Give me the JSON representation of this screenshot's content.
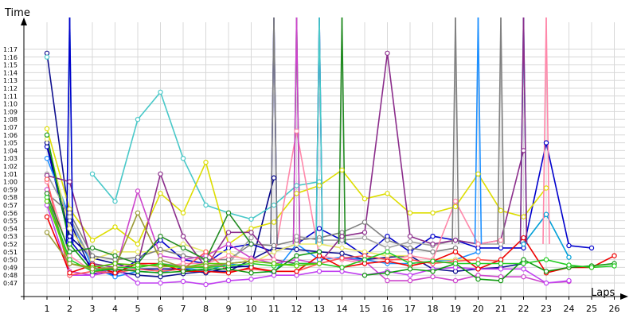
{
  "chart_data": {
    "type": "line",
    "title": "",
    "xlabel": "Laps",
    "ylabel": "Time",
    "x": [
      1,
      2,
      3,
      4,
      5,
      6,
      7,
      8,
      9,
      10,
      11,
      12,
      13,
      14,
      15,
      16,
      17,
      18,
      19,
      20,
      21,
      22,
      23,
      24,
      25,
      26
    ],
    "ylim": [
      46.5,
      77.6
    ],
    "y_ticks": [
      "0:47",
      "0:48",
      "0:49",
      "0:50",
      "0:51",
      "0:52",
      "0:53",
      "0:54",
      "0:55",
      "0:56",
      "0:57",
      "0:58",
      "0:59",
      "1:00",
      "1:01",
      "1:02",
      "1:03",
      "1:04",
      "1:05",
      "1:06",
      "1:07",
      "1:08",
      "1:09",
      "1:10",
      "1:11",
      "1:12",
      "1:13",
      "1:14",
      "1:15",
      "1:16",
      "1:17"
    ],
    "y_tick_values": [
      47,
      48,
      49,
      50,
      51,
      52,
      53,
      54,
      55,
      56,
      57,
      58,
      59,
      60,
      61,
      62,
      63,
      64,
      65,
      66,
      67,
      68,
      69,
      70,
      71,
      72,
      73,
      74,
      75,
      76,
      77
    ],
    "grid": true,
    "series": [
      {
        "color": "#0000cc",
        "values": [
          64.5,
          52.5,
          49.0,
          48.0,
          50.0,
          52.5,
          50.0,
          49.5,
          51.5,
          52.0,
          51.0,
          52.0,
          54.0,
          52.5,
          50.5,
          53.0,
          51.0,
          53.0,
          52.5,
          51.5,
          51.5,
          51.5,
          65.0,
          51.8,
          51.5,
          null
        ]
      },
      {
        "color": "#1e90ff",
        "values": [
          63.0,
          55.5,
          49.0,
          47.8,
          48.5,
          48.3,
          49.0,
          48.5,
          49.5,
          49.0,
          48.3,
          52.0,
          50.0,
          50.3,
          50.0,
          49.5,
          49.5,
          49.8,
          50.0,
          51.0,
          null,
          null,
          null,
          null,
          null,
          null
        ]
      },
      {
        "color": "#00a0d8",
        "values": [
          null,
          null,
          null,
          null,
          null,
          null,
          null,
          null,
          null,
          null,
          null,
          null,
          null,
          null,
          null,
          null,
          null,
          null,
          null,
          null,
          null,
          52.0,
          55.8,
          50.3,
          null,
          null
        ]
      },
      {
        "color": "#0f0f8f",
        "values": [
          76.5,
          55.0,
          48.2,
          48.5,
          48.0,
          47.8,
          48.2,
          48.5,
          48.5,
          50.0,
          51.5,
          51.3,
          51.0,
          50.8,
          50.0,
          50.3,
          50.5,
          48.8,
          48.5,
          48.8,
          49.0,
          49.5,
          null,
          null,
          null,
          null
        ]
      },
      {
        "color": "#000088",
        "values": [
          65.0,
          53.0,
          50.2,
          49.5,
          48.8,
          48.8,
          48.8,
          48.3,
          49.0,
          49.2,
          60.5,
          null,
          null,
          null,
          null,
          null,
          null,
          null,
          null,
          null,
          null,
          null,
          null,
          null,
          null,
          null
        ]
      },
      {
        "color": "#48c8c8",
        "values": [
          76.0,
          null,
          61.0,
          57.5,
          68.0,
          71.5,
          63.0,
          57.0,
          56.0,
          55.2,
          57.0,
          59.5,
          60.0,
          null,
          null,
          null,
          null,
          null,
          null,
          null,
          null,
          null,
          null,
          null,
          null,
          null
        ]
      },
      {
        "color": "#dddd00",
        "values": [
          66.8,
          56.5,
          52.5,
          54.2,
          52.0,
          58.5,
          56.0,
          62.5,
          52.0,
          54.0,
          54.8,
          58.5,
          59.5,
          61.5,
          57.8,
          58.5,
          56.0,
          56.0,
          56.8,
          61.0,
          56.3,
          55.5,
          59.2,
          null,
          null,
          null
        ]
      },
      {
        "color": "#e8e868",
        "values": [
          65.5,
          54.0,
          50.0,
          51.0,
          51.0,
          51.0,
          52.0,
          51.0,
          51.0,
          49.5,
          51.0,
          52.0,
          52.0,
          51.5,
          51.0,
          50.5,
          50.5,
          50.0,
          50.0,
          50.0,
          null,
          null,
          null,
          null,
          null,
          null
        ]
      },
      {
        "color": "#808080",
        "values": [
          58.5,
          56.0,
          50.5,
          50.0,
          50.3,
          51.3,
          50.5,
          50.0,
          50.0,
          52.0,
          51.8,
          52.5,
          52.8,
          53.5,
          54.8,
          52.5,
          51.5,
          51.0,
          51.5,
          null,
          null,
          null,
          null,
          null,
          null,
          null
        ]
      },
      {
        "color": "#a0a0a0",
        "values": [
          61.0,
          55.5,
          49.5,
          48.5,
          49.0,
          49.5,
          49.2,
          49.0,
          49.5,
          52.8,
          null,
          53.0,
          52.5,
          52.5,
          52.8,
          51.5,
          52.3,
          51.8,
          52.5,
          52.0,
          52.0,
          null,
          null,
          null,
          null,
          null
        ]
      },
      {
        "color": "#8b2d8b",
        "values": [
          60.8,
          60.0,
          49.5,
          49.0,
          49.5,
          61.0,
          53.0,
          49.0,
          53.5,
          53.5,
          50.0,
          49.5,
          49.5,
          53.0,
          53.5,
          76.5,
          53.0,
          52.0,
          52.5,
          52.0,
          52.5,
          64.0,
          null,
          null,
          null,
          null
        ]
      },
      {
        "color": "#cc44cc",
        "values": [
          59.0,
          48.5,
          48.0,
          48.5,
          58.8,
          50.5,
          50.0,
          50.5,
          52.0,
          50.2,
          49.5,
          50.0,
          49.5,
          50.2,
          49.8,
          47.3,
          47.3,
          47.8,
          47.3,
          48.0,
          47.8,
          47.8,
          47.0,
          47.2,
          null,
          null
        ]
      },
      {
        "color": "#c040f0",
        "values": [
          57.0,
          48.0,
          48.0,
          49.0,
          47.0,
          47.0,
          47.2,
          46.8,
          47.3,
          47.5,
          48.0,
          48.0,
          48.5,
          48.5,
          48.0,
          48.5,
          48.0,
          48.8,
          49.0,
          48.8,
          48.8,
          48.8,
          47.0,
          47.3,
          null,
          null
        ]
      },
      {
        "color": "#ff88aa",
        "values": [
          60.0,
          50.5,
          48.5,
          49.0,
          49.5,
          49.0,
          49.5,
          49.5,
          50.5,
          50.0,
          50.0,
          66.5,
          50.5,
          50.0,
          49.5,
          49.8,
          50.5,
          50.0,
          57.5,
          52.0,
          52.5,
          null,
          null,
          null,
          null,
          null
        ]
      },
      {
        "color": "#ff5555",
        "values": [
          60.3,
          48.0,
          48.5,
          48.3,
          48.8,
          48.5,
          48.8,
          51.0,
          48.5,
          48.8,
          48.5,
          48.5,
          49.5,
          50.2,
          50.5,
          50.0,
          50.0,
          49.5,
          49.8,
          50.0,
          49.8,
          null,
          null,
          null,
          null,
          null
        ]
      },
      {
        "color": "#ee0000",
        "values": [
          55.5,
          48.3,
          49.3,
          48.3,
          49.5,
          49.5,
          48.5,
          48.5,
          48.3,
          49.0,
          48.5,
          48.5,
          50.5,
          49.0,
          49.5,
          49.8,
          49.2,
          49.8,
          51.0,
          48.8,
          50.0,
          52.8,
          48.3,
          49.0,
          49.0,
          50.5
        ]
      },
      {
        "color": "#228b22",
        "values": [
          58.5,
          51.0,
          51.5,
          50.5,
          49.5,
          53.0,
          51.5,
          50.0,
          56.0,
          52.0,
          null,
          null,
          null,
          null,
          null,
          null,
          null,
          null,
          null,
          null,
          null,
          null,
          null,
          null,
          null,
          null
        ]
      },
      {
        "color": "#119911",
        "values": [
          66.0,
          52.0,
          48.5,
          48.8,
          48.5,
          48.3,
          48.5,
          48.8,
          48.8,
          48.3,
          48.5,
          50.5,
          51.0,
          null,
          48.0,
          48.3,
          48.8,
          48.5,
          49.5,
          47.5,
          47.3,
          50.0,
          48.5,
          49.0,
          49.2,
          49.5
        ]
      },
      {
        "color": "#22cc22",
        "values": [
          58.0,
          50.0,
          48.5,
          49.0,
          49.0,
          49.5,
          49.0,
          49.0,
          49.2,
          49.5,
          49.2,
          49.5,
          49.5,
          49.0,
          50.0,
          51.0,
          49.5,
          49.8,
          49.5,
          49.5,
          49.5,
          49.5,
          50.0,
          49.3,
          49.0,
          49.2
        ]
      },
      {
        "color": "#55cc00",
        "values": [
          57.5,
          49.5,
          49.0,
          49.5,
          49.3,
          49.2,
          49.0,
          49.5,
          49.5,
          49.8,
          49.5,
          49.2,
          49.5,
          null,
          null,
          null,
          null,
          null,
          null,
          null,
          null,
          null,
          null,
          null,
          null,
          null
        ]
      },
      {
        "color": "#999933",
        "values": [
          53.5,
          49.5,
          48.8,
          49.0,
          56.0,
          50.0,
          49.0,
          49.2,
          49.5,
          49.8,
          null,
          null,
          null,
          null,
          null,
          null,
          null,
          null,
          null,
          null,
          null,
          null,
          null,
          null,
          null,
          null
        ]
      }
    ],
    "spikes": [
      {
        "color": "#0000cc",
        "x": 11
      },
      {
        "color": "#0000cc",
        "x": 13
      },
      {
        "color": "#808080",
        "x": 11
      },
      {
        "color": "#808080",
        "x": 19
      },
      {
        "color": "#808080",
        "x": 21
      },
      {
        "color": "#228b22",
        "x": 12
      },
      {
        "color": "#228b22",
        "x": 14
      },
      {
        "color": "#cc44cc",
        "x": 12
      },
      {
        "color": "#1e90ff",
        "x": 20
      },
      {
        "color": "#00a0d8",
        "x": 22
      },
      {
        "color": "#ff88aa",
        "x": 23
      },
      {
        "color": "#8b2d8b",
        "x": 22
      },
      {
        "color": "#48c8c8",
        "x": 2
      },
      {
        "color": "#48c8c8",
        "x": 13
      },
      {
        "color": "#0000cc",
        "x": 2
      }
    ]
  }
}
